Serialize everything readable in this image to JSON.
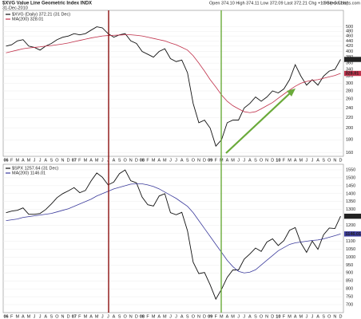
{
  "chart_data": [
    {
      "type": "line",
      "title": "$XVG Value Line Geometric Index INDX",
      "subtitle": "31-Dec-2010",
      "quote": "Open 374.10 High 374.11 Low 372.09 Last 372.21 Chg +1.90 (+0.51%)",
      "source": "© StockCharts.com",
      "categories": [
        "06",
        "F",
        "M",
        "A",
        "M",
        "J",
        "J",
        "A",
        "S",
        "O",
        "N",
        "D",
        "07",
        "F",
        "M",
        "A",
        "M",
        "J",
        "J",
        "A",
        "S",
        "O",
        "N",
        "D",
        "08",
        "F",
        "M",
        "A",
        "M",
        "J",
        "J",
        "A",
        "S",
        "O",
        "N",
        "D",
        "09",
        "F",
        "M",
        "A",
        "M",
        "J",
        "J",
        "A",
        "S",
        "O",
        "N",
        "D",
        "10",
        "F",
        "M",
        "A",
        "M",
        "J",
        "J",
        "A",
        "S",
        "O",
        "N",
        "D"
      ],
      "series": [
        {
          "name": "$XVG (Daily) 372.21 (31 Dec)",
          "color": "#111111",
          "values": [
            420,
            425,
            440,
            445,
            420,
            415,
            405,
            420,
            430,
            445,
            455,
            460,
            470,
            465,
            470,
            485,
            500,
            495,
            470,
            455,
            465,
            470,
            440,
            430,
            400,
            390,
            380,
            400,
            410,
            375,
            365,
            370,
            330,
            250,
            210,
            215,
            200,
            170,
            180,
            210,
            215,
            215,
            240,
            250,
            265,
            255,
            265,
            280,
            275,
            285,
            310,
            355,
            320,
            295,
            310,
            295,
            320,
            335,
            340,
            372.21
          ]
        },
        {
          "name": "MA(200) 328.01",
          "color": "#c0304a",
          "values": [
            395,
            400,
            405,
            410,
            413,
            415,
            417,
            420,
            422,
            425,
            428,
            432,
            437,
            442,
            447,
            452,
            456,
            460,
            462,
            463,
            464,
            465,
            465,
            463,
            460,
            455,
            450,
            445,
            440,
            432,
            425,
            415,
            405,
            385,
            360,
            335,
            310,
            290,
            270,
            255,
            245,
            238,
            232,
            230,
            232,
            238,
            245,
            252,
            262,
            272,
            282,
            292,
            300,
            305,
            308,
            310,
            314,
            318,
            322,
            328.01
          ]
        }
      ],
      "log_scale": true,
      "grid": true,
      "ylim": [
        155,
        580
      ],
      "yticks": [
        160,
        180,
        200,
        220,
        240,
        260,
        280,
        300,
        320,
        340,
        360,
        380,
        400,
        420,
        440,
        460,
        480,
        500
      ]
    },
    {
      "type": "line",
      "categories": [
        "06",
        "F",
        "M",
        "A",
        "M",
        "J",
        "J",
        "A",
        "S",
        "O",
        "N",
        "D",
        "07",
        "F",
        "M",
        "A",
        "M",
        "J",
        "J",
        "A",
        "S",
        "O",
        "N",
        "D",
        "08",
        "F",
        "M",
        "A",
        "M",
        "J",
        "J",
        "A",
        "S",
        "O",
        "N",
        "D",
        "09",
        "F",
        "M",
        "A",
        "M",
        "J",
        "J",
        "A",
        "S",
        "O",
        "N",
        "D",
        "10",
        "F",
        "M",
        "A",
        "M",
        "J",
        "J",
        "A",
        "S",
        "O",
        "N",
        "D"
      ],
      "series": [
        {
          "name": "$SPX 1257.64 (31 Dec)",
          "color": "#111111",
          "values": [
            1280,
            1290,
            1295,
            1310,
            1270,
            1270,
            1275,
            1300,
            1335,
            1375,
            1400,
            1418,
            1438,
            1406,
            1420,
            1480,
            1530,
            1503,
            1455,
            1473,
            1526,
            1549,
            1481,
            1468,
            1378,
            1330,
            1322,
            1385,
            1400,
            1280,
            1267,
            1282,
            1166,
            968,
            896,
            903,
            825,
            735,
            797,
            872,
            919,
            919,
            987,
            1020,
            1057,
            1036,
            1095,
            1115,
            1073,
            1104,
            1169,
            1186,
            1089,
            1030,
            1101,
            1049,
            1141,
            1183,
            1180,
            1257.64
          ]
        },
        {
          "name": "MA(200) 1146.01",
          "color": "#3b3b9c",
          "values": [
            1230,
            1235,
            1240,
            1250,
            1255,
            1260,
            1265,
            1270,
            1275,
            1285,
            1295,
            1305,
            1320,
            1335,
            1350,
            1365,
            1385,
            1400,
            1415,
            1430,
            1440,
            1450,
            1460,
            1462,
            1462,
            1455,
            1445,
            1430,
            1410,
            1390,
            1370,
            1345,
            1320,
            1280,
            1230,
            1180,
            1130,
            1080,
            1030,
            980,
            940,
            910,
            900,
            905,
            920,
            950,
            980,
            1010,
            1040,
            1060,
            1080,
            1090,
            1095,
            1100,
            1105,
            1108,
            1115,
            1125,
            1135,
            1146.01
          ]
        }
      ],
      "log_scale": false,
      "grid": true,
      "ylim": [
        650,
        1585
      ],
      "yticks": [
        700,
        750,
        800,
        850,
        900,
        950,
        1000,
        1050,
        1100,
        1150,
        1200,
        1250,
        1300,
        1350,
        1400,
        1450,
        1500,
        1550
      ]
    }
  ]
}
